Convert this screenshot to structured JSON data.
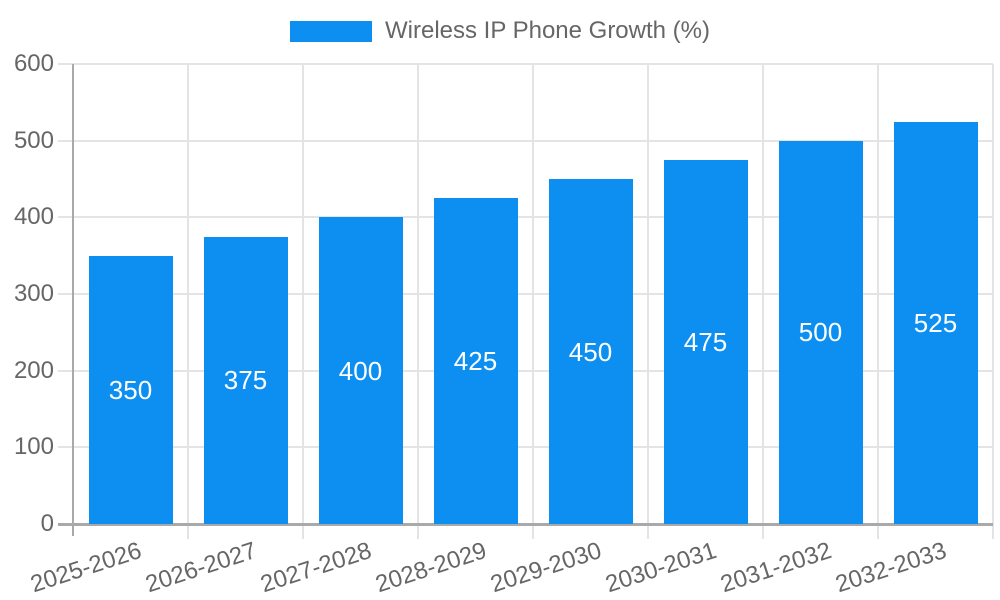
{
  "legend": {
    "label": "Wireless IP Phone Growth (%)"
  },
  "chart_data": {
    "type": "bar",
    "title": "Wireless IP Phone Growth (%)",
    "categories": [
      "2025-2026",
      "2026-2027",
      "2027-2028",
      "2028-2029",
      "2029-2030",
      "2030-2031",
      "2031-2032",
      "2032-2033"
    ],
    "series": [
      {
        "name": "Wireless IP Phone Growth (%)",
        "values": [
          350,
          375,
          400,
          425,
          450,
          475,
          500,
          525
        ]
      }
    ],
    "values": [
      350,
      375,
      400,
      425,
      450,
      475,
      500,
      525
    ],
    "bar_labels": [
      "350",
      "375",
      "400",
      "425",
      "450",
      "475",
      "500",
      "525"
    ],
    "xlabel": "",
    "ylabel": "",
    "ylim": [
      0,
      600
    ],
    "y_ticks": [
      0,
      100,
      200,
      300,
      400,
      500,
      600
    ],
    "grid": true,
    "legend_position": "top",
    "x_label_rotation_deg": -18
  },
  "colors": {
    "bar": "#0d8ff2",
    "bar_label": "#ffffff",
    "tick_text": "#666666",
    "grid": "#e4e4e4",
    "axis": "#a9a9a9",
    "background": "#ffffff"
  }
}
